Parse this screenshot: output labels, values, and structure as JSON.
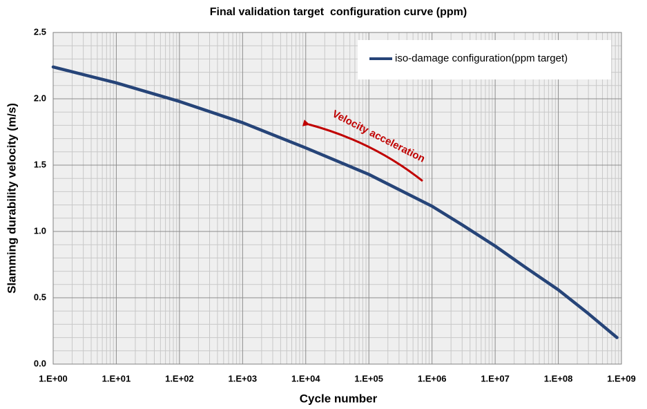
{
  "chart_data": {
    "type": "line",
    "title": "Final validation target  configuration curve (ppm)",
    "xlabel": "Cycle number",
    "ylabel": "Slamming durability velocity (m/s)",
    "x": [
      1,
      10,
      100,
      1000,
      10000,
      100000,
      1000000,
      3000000,
      10000000,
      30000000,
      100000000,
      300000000,
      850000000
    ],
    "series": [
      {
        "name": "iso-damage configuration(ppm target)",
        "color": "#264478",
        "values": [
          2.24,
          2.12,
          1.98,
          1.82,
          1.63,
          1.43,
          1.19,
          1.05,
          0.89,
          0.73,
          0.56,
          0.38,
          0.2
        ]
      }
    ],
    "xlim": [
      1,
      1000000000
    ],
    "xscale": "log",
    "xticks": [
      {
        "value": 1,
        "label": "1.E+00"
      },
      {
        "value": 10,
        "label": "1.E+01"
      },
      {
        "value": 100,
        "label": "1.E+02"
      },
      {
        "value": 1000,
        "label": "1.E+03"
      },
      {
        "value": 10000,
        "label": "1.E+04"
      },
      {
        "value": 100000,
        "label": "1.E+05"
      },
      {
        "value": 1000000,
        "label": "1.E+06"
      },
      {
        "value": 10000000,
        "label": "1.E+07"
      },
      {
        "value": 100000000,
        "label": "1.E+08"
      },
      {
        "value": 1000000000,
        "label": "1.E+09"
      }
    ],
    "ylim": [
      0,
      2.5
    ],
    "yticks": [
      {
        "value": 0,
        "label": "0.0"
      },
      0.5,
      {
        "value": 1,
        "label": "1.0"
      },
      1.5,
      {
        "value": 2,
        "label": "2.0"
      },
      2.5
    ],
    "grid": true,
    "legend": "upper right",
    "annotation": "Velocity acceleration"
  }
}
